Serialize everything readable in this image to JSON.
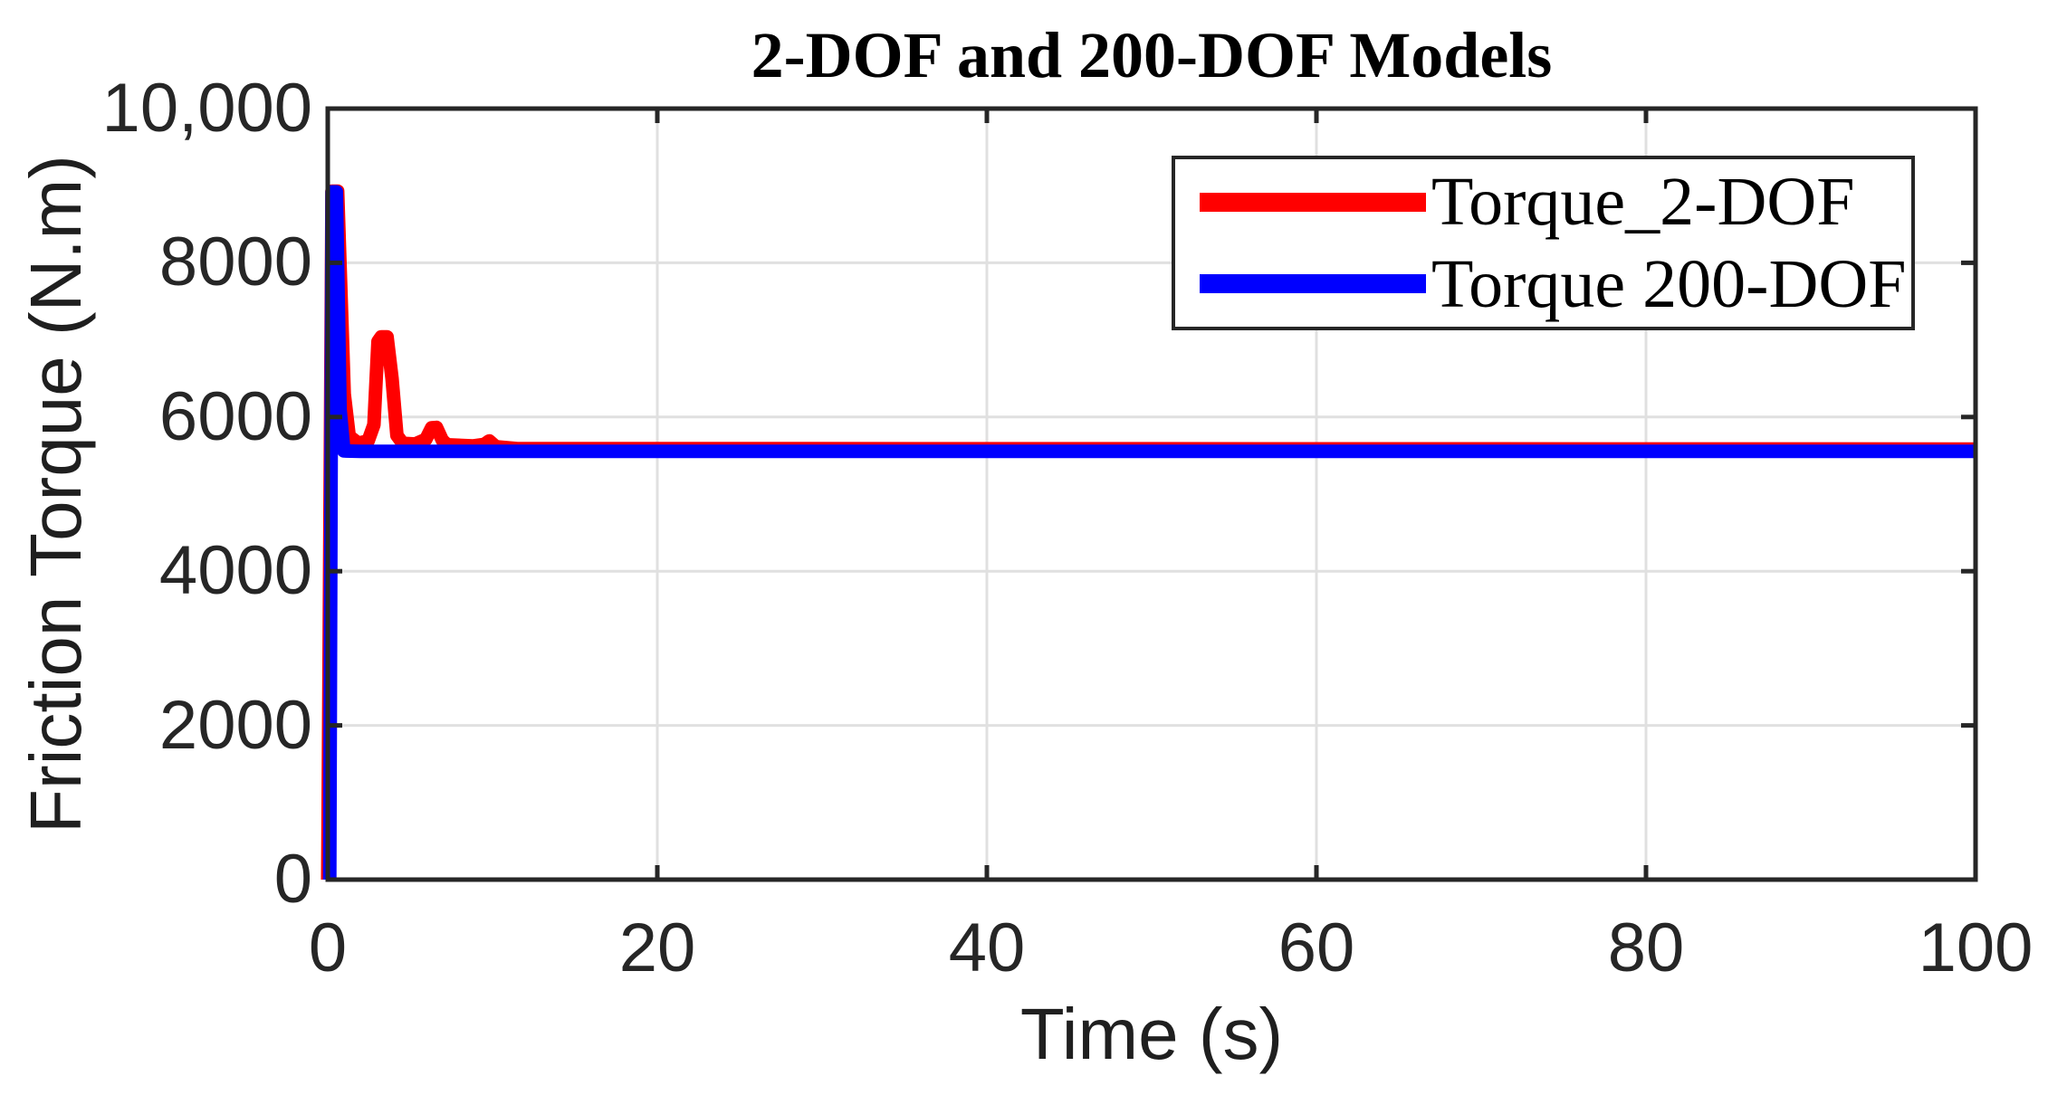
{
  "chart_data": {
    "type": "line",
    "title": "2-DOF and 200-DOF Models",
    "xlabel": "Time (s)",
    "ylabel": "Friction Torque (N.m)",
    "xlim": [
      0,
      100
    ],
    "ylim": [
      0,
      10000
    ],
    "grid": true,
    "x_ticks": [
      {
        "value": 0,
        "label": "0"
      },
      {
        "value": 20,
        "label": "20"
      },
      {
        "value": 40,
        "label": "40"
      },
      {
        "value": 60,
        "label": "60"
      },
      {
        "value": 80,
        "label": "80"
      },
      {
        "value": 100,
        "label": "100"
      }
    ],
    "y_ticks": [
      {
        "value": 0,
        "label": "0"
      },
      {
        "value": 2000,
        "label": "2000"
      },
      {
        "value": 4000,
        "label": "4000"
      },
      {
        "value": 6000,
        "label": "6000"
      },
      {
        "value": 8000,
        "label": "8000"
      },
      {
        "value": 10000,
        "label": "10,000"
      }
    ],
    "legend": {
      "position": "northeast",
      "items": [
        {
          "label": "Torque_2-DOF",
          "color": "#ff0000"
        },
        {
          "label": "Torque 200-DOF",
          "color": "#0000ff"
        }
      ]
    },
    "series": [
      {
        "name": "Torque 2-DOF",
        "color": "#ff0000",
        "line_width": 15,
        "points": [
          [
            0.0,
            0
          ],
          [
            0.26,
            8930
          ],
          [
            0.6,
            8930
          ],
          [
            1.0,
            6300
          ],
          [
            1.3,
            5750
          ],
          [
            1.85,
            5660
          ],
          [
            2.45,
            5690
          ],
          [
            2.8,
            5900
          ],
          [
            3.05,
            6980
          ],
          [
            3.25,
            7040
          ],
          [
            3.6,
            7040
          ],
          [
            3.9,
            6500
          ],
          [
            4.2,
            5760
          ],
          [
            4.55,
            5660
          ],
          [
            5.3,
            5650
          ],
          [
            5.95,
            5710
          ],
          [
            6.3,
            5860
          ],
          [
            6.6,
            5865
          ],
          [
            6.95,
            5700
          ],
          [
            7.25,
            5640
          ],
          [
            8.8,
            5625
          ],
          [
            9.5,
            5645
          ],
          [
            9.8,
            5690
          ],
          [
            10.2,
            5615
          ],
          [
            11.5,
            5590
          ],
          [
            100,
            5585
          ]
        ]
      },
      {
        "name": "Torque 200-DOF",
        "color": "#0000ff",
        "line_width": 15,
        "points": [
          [
            0.12,
            0
          ],
          [
            0.26,
            8920
          ],
          [
            0.52,
            8920
          ],
          [
            0.75,
            6100
          ],
          [
            0.98,
            5560
          ],
          [
            2.0,
            5555
          ],
          [
            100,
            5555
          ]
        ]
      }
    ],
    "colors": {
      "axis": "#262626",
      "grid": "#e0e0e0",
      "background": "#ffffff"
    }
  }
}
